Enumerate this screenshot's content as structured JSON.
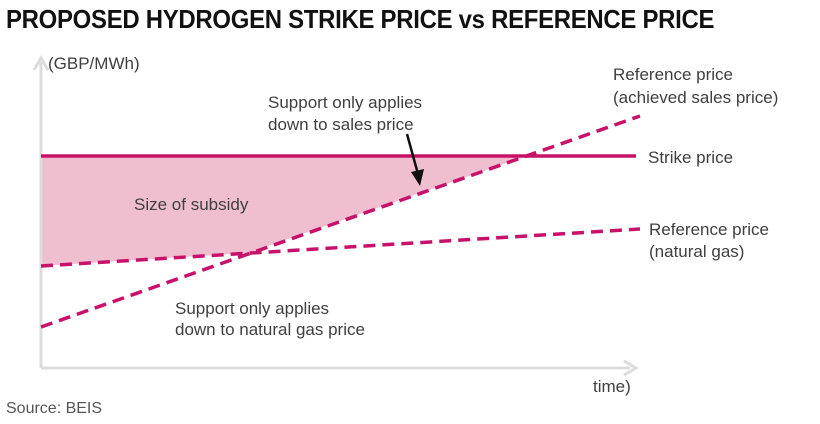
{
  "title": "PROPOSED HYDROGEN STRIKE PRICE vs REFERENCE PRICE",
  "axis": {
    "y_label": "(GBP/MWh)",
    "x_label": "time)"
  },
  "lines": {
    "strike": "Strike price",
    "ref_sales_1": "Reference price",
    "ref_sales_2": "(achieved sales price)",
    "ref_gas_1": "Reference price",
    "ref_gas_2": "(natural gas)"
  },
  "annotations": {
    "subsidy": "Size of subsidy",
    "sales_1": "Support only applies",
    "sales_2": "down to sales price",
    "gas_1": "Support only applies",
    "gas_2": "down to natural gas price"
  },
  "source": "Source: BEIS",
  "colors": {
    "line": "#c8126a",
    "fill": "#efbfd0",
    "axis": "#dcdcdc",
    "arrow": "#111111"
  }
}
